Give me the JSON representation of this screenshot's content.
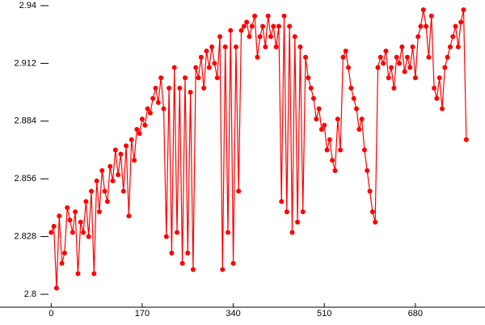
{
  "chart_data": {
    "type": "line",
    "color": "#ff0000",
    "x": [
      0,
      5,
      10,
      15,
      20,
      25,
      30,
      35,
      40,
      45,
      50,
      55,
      60,
      65,
      70,
      75,
      80,
      85,
      90,
      95,
      100,
      105,
      110,
      115,
      120,
      125,
      130,
      135,
      140,
      145,
      150,
      155,
      160,
      165,
      170,
      175,
      180,
      185,
      190,
      195,
      200,
      205,
      210,
      215,
      220,
      225,
      230,
      235,
      240,
      245,
      250,
      255,
      260,
      265,
      270,
      275,
      280,
      285,
      290,
      295,
      300,
      305,
      310,
      315,
      320,
      325,
      330,
      335,
      340,
      345,
      350,
      355,
      360,
      365,
      370,
      375,
      380,
      385,
      390,
      395,
      400,
      405,
      410,
      415,
      420,
      425,
      430,
      435,
      440,
      445,
      450,
      455,
      460,
      465,
      470,
      475,
      480,
      485,
      490,
      495,
      500,
      505,
      510,
      515,
      520,
      525,
      530,
      535,
      540,
      545,
      550,
      555,
      560,
      565,
      570,
      575,
      580,
      585,
      590,
      595,
      600,
      605,
      610,
      615,
      620,
      625,
      630,
      635,
      640,
      645,
      650,
      655,
      660,
      665,
      670,
      675,
      680,
      685,
      690,
      695,
      700,
      705,
      710,
      715,
      720,
      725,
      730,
      735,
      740,
      745,
      750,
      755,
      760,
      765,
      770,
      775
    ],
    "values": [
      2.83,
      2.833,
      2.803,
      2.838,
      2.815,
      2.82,
      2.842,
      2.836,
      2.83,
      2.84,
      2.81,
      2.835,
      2.83,
      2.845,
      2.828,
      2.85,
      2.81,
      2.855,
      2.84,
      2.86,
      2.85,
      2.845,
      2.862,
      2.855,
      2.87,
      2.858,
      2.868,
      2.85,
      2.872,
      2.838,
      2.875,
      2.865,
      2.88,
      2.878,
      2.885,
      2.882,
      2.89,
      2.888,
      2.895,
      2.9,
      2.893,
      2.905,
      2.89,
      2.828,
      2.9,
      2.82,
      2.91,
      2.83,
      2.9,
      2.815,
      2.905,
      2.82,
      2.898,
      2.812,
      2.91,
      2.905,
      2.915,
      2.9,
      2.918,
      2.91,
      2.92,
      2.912,
      2.905,
      2.925,
      2.812,
      2.92,
      2.83,
      2.928,
      2.815,
      2.92,
      2.85,
      2.928,
      2.93,
      2.932,
      2.925,
      2.93,
      2.935,
      2.915,
      2.925,
      2.93,
      2.92,
      2.935,
      2.925,
      2.93,
      2.92,
      2.93,
      2.845,
      2.935,
      2.84,
      2.93,
      2.83,
      2.925,
      2.835,
      2.92,
      2.84,
      2.915,
      2.905,
      2.9,
      2.895,
      2.885,
      2.89,
      2.88,
      2.882,
      2.87,
      2.875,
      2.865,
      2.86,
      2.885,
      2.87,
      2.915,
      2.918,
      2.91,
      2.9,
      2.895,
      2.89,
      2.88,
      2.885,
      2.87,
      2.86,
      2.85,
      2.84,
      2.835,
      2.91,
      2.915,
      2.912,
      2.918,
      2.905,
      2.91,
      2.9,
      2.915,
      2.912,
      2.92,
      2.908,
      2.915,
      2.91,
      2.92,
      2.905,
      2.925,
      2.93,
      2.938,
      2.93,
      2.915,
      2.935,
      2.9,
      2.895,
      2.905,
      2.89,
      2.91,
      2.915,
      2.92,
      2.925,
      2.93,
      2.92,
      2.932,
      2.938,
      2.875
    ],
    "xlim": [
      -5,
      810
    ],
    "ylim": [
      2.8,
      2.94
    ],
    "xticks": [
      0,
      170,
      340,
      510,
      680
    ],
    "yticks": [
      {
        "value": 2.8,
        "label": "2.8"
      },
      {
        "value": 2.828,
        "label": "2.828"
      },
      {
        "value": 2.856,
        "label": "2.856"
      },
      {
        "value": 2.884,
        "label": "2.884"
      },
      {
        "value": 2.912,
        "label": "2.912"
      },
      {
        "value": 2.94,
        "label": "2.94"
      }
    ]
  }
}
